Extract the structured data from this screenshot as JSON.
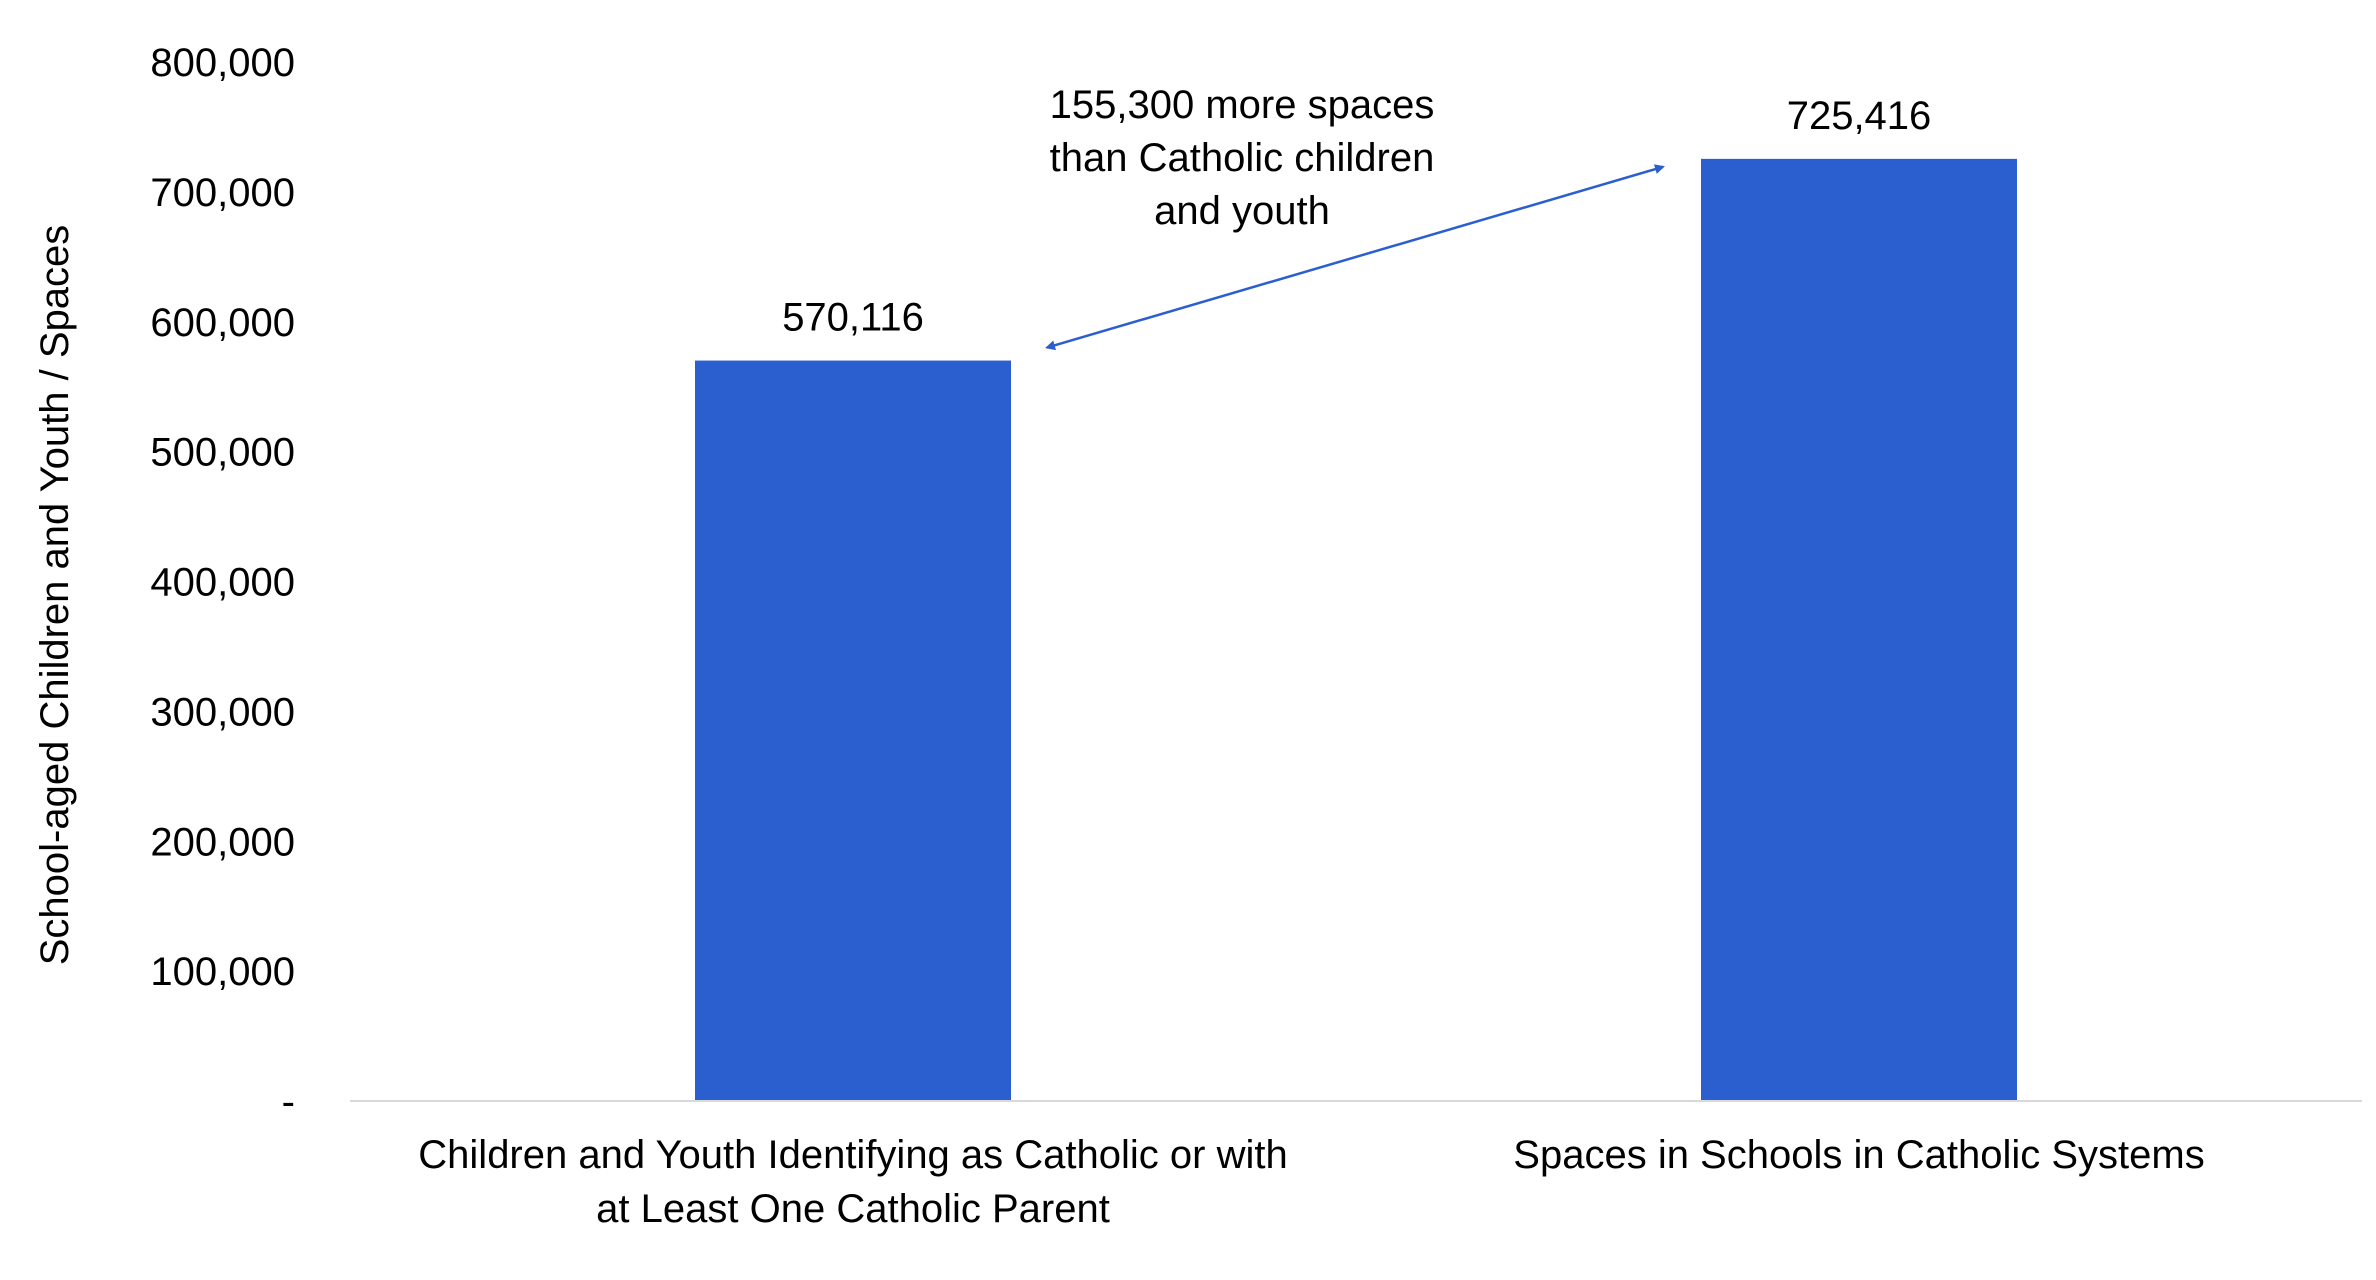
{
  "chart_data": {
    "type": "bar",
    "categories": [
      [
        "Children and Youth Identifying as Catholic or with",
        "at Least One Catholic Parent"
      ],
      [
        "Spaces in Schools in Catholic Systems"
      ]
    ],
    "values": [
      570116,
      725416
    ],
    "data_labels": [
      "570,116",
      "725,416"
    ],
    "ylabel": "School-aged Children and Youth / Spaces",
    "ylim": [
      0,
      800000
    ],
    "yticks": [
      0,
      100000,
      200000,
      300000,
      400000,
      500000,
      600000,
      700000,
      800000
    ],
    "ytick_labels": [
      "-",
      "100,000",
      "200,000",
      "300,000",
      "400,000",
      "500,000",
      "600,000",
      "700,000",
      "800,000"
    ],
    "bar_color": "#2B5FCF",
    "grid": false,
    "legend": "none",
    "annotation": {
      "lines": [
        "155,300 more spaces",
        "than Catholic children",
        "and youth"
      ],
      "arrow_between": [
        "570,116",
        "725,416"
      ],
      "arrow_color": "#2B5FCF"
    }
  }
}
